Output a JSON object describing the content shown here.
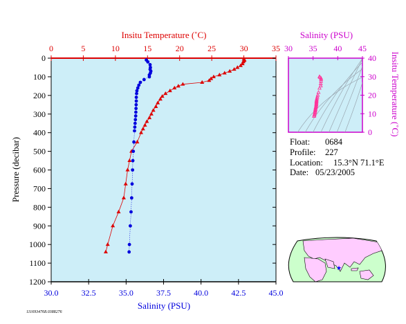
{
  "colors": {
    "background": "#ffffff",
    "plot_fill": "#cdeef8",
    "temperature": "#dd0000",
    "salinity": "#0000dd",
    "ts_axis": "#cc00cc",
    "ts_points": "#ff3399",
    "axis_black": "#000000",
    "isopycnal": "#9aa6b0",
    "land": "#ffccff",
    "ocean": "#ccffcc",
    "marker": "#0000ff"
  },
  "chart_data": [
    {
      "type": "line",
      "title": "",
      "ylabel": "Pressure (decibar)",
      "ylim": [
        1200,
        0
      ],
      "y_ticks": [
        "0",
        "100",
        "200",
        "300",
        "400",
        "500",
        "600",
        "700",
        "800",
        "900",
        "1000",
        "1100",
        "1200"
      ],
      "top_axis": {
        "label": "Insitu Temperature (˚C)",
        "range": [
          0,
          35
        ],
        "ticks": [
          "0",
          "5",
          "10",
          "15",
          "20",
          "25",
          "30",
          "35"
        ]
      },
      "bottom_axis": {
        "label": "Salinity (PSU)",
        "range": [
          30,
          45
        ],
        "ticks": [
          "30.0",
          "32.5",
          "35.0",
          "37.5",
          "40.0",
          "42.5",
          "45.0"
        ]
      },
      "grid": false,
      "legend": "none",
      "series": [
        {
          "name": "",
          "quantity": "temperature",
          "marker": "triangle",
          "points": [
            {
              "p": 5,
              "v": 30.0
            },
            {
              "p": 10,
              "v": 30.1
            },
            {
              "p": 15,
              "v": 30.0
            },
            {
              "p": 20,
              "v": 29.9
            },
            {
              "p": 30,
              "v": 29.8
            },
            {
              "p": 40,
              "v": 29.5
            },
            {
              "p": 50,
              "v": 29.0
            },
            {
              "p": 60,
              "v": 28.5
            },
            {
              "p": 70,
              "v": 27.8
            },
            {
              "p": 80,
              "v": 27.0
            },
            {
              "p": 90,
              "v": 26.2
            },
            {
              "p": 100,
              "v": 25.3
            },
            {
              "p": 110,
              "v": 24.9
            },
            {
              "p": 120,
              "v": 24.6
            },
            {
              "p": 130,
              "v": 23.5
            },
            {
              "p": 140,
              "v": 20.5
            },
            {
              "p": 150,
              "v": 19.8
            },
            {
              "p": 160,
              "v": 19.2
            },
            {
              "p": 175,
              "v": 18.5
            },
            {
              "p": 190,
              "v": 17.8
            },
            {
              "p": 205,
              "v": 17.3
            },
            {
              "p": 220,
              "v": 17.0
            },
            {
              "p": 240,
              "v": 16.6
            },
            {
              "p": 260,
              "v": 16.3
            },
            {
              "p": 280,
              "v": 15.9
            },
            {
              "p": 300,
              "v": 15.6
            },
            {
              "p": 320,
              "v": 15.3
            },
            {
              "p": 340,
              "v": 14.9
            },
            {
              "p": 360,
              "v": 14.6
            },
            {
              "p": 380,
              "v": 14.3
            },
            {
              "p": 400,
              "v": 14.0
            },
            {
              "p": 450,
              "v": 13.4
            },
            {
              "p": 500,
              "v": 12.5
            },
            {
              "p": 550,
              "v": 12.2
            },
            {
              "p": 600,
              "v": 11.9
            },
            {
              "p": 675,
              "v": 11.6
            },
            {
              "p": 750,
              "v": 11.3
            },
            {
              "p": 825,
              "v": 10.5
            },
            {
              "p": 900,
              "v": 9.6
            },
            {
              "p": 1000,
              "v": 8.8
            },
            {
              "p": 1040,
              "v": 8.5
            }
          ]
        },
        {
          "name": "",
          "quantity": "salinity",
          "marker": "circle",
          "points": [
            {
              "p": 10,
              "v": 36.35
            },
            {
              "p": 20,
              "v": 36.45
            },
            {
              "p": 35,
              "v": 36.6
            },
            {
              "p": 50,
              "v": 36.62
            },
            {
              "p": 60,
              "v": 36.6
            },
            {
              "p": 70,
              "v": 36.65
            },
            {
              "p": 80,
              "v": 36.62
            },
            {
              "p": 90,
              "v": 36.55
            },
            {
              "p": 100,
              "v": 36.55
            },
            {
              "p": 115,
              "v": 36.2
            },
            {
              "p": 130,
              "v": 35.95
            },
            {
              "p": 145,
              "v": 35.85
            },
            {
              "p": 160,
              "v": 35.78
            },
            {
              "p": 175,
              "v": 35.72
            },
            {
              "p": 190,
              "v": 35.7
            },
            {
              "p": 210,
              "v": 35.68
            },
            {
              "p": 230,
              "v": 35.68
            },
            {
              "p": 250,
              "v": 35.67
            },
            {
              "p": 270,
              "v": 35.66
            },
            {
              "p": 290,
              "v": 35.65
            },
            {
              "p": 310,
              "v": 35.64
            },
            {
              "p": 330,
              "v": 35.62
            },
            {
              "p": 350,
              "v": 35.6
            },
            {
              "p": 370,
              "v": 35.58
            },
            {
              "p": 390,
              "v": 35.56
            },
            {
              "p": 450,
              "v": 35.52
            },
            {
              "p": 500,
              "v": 35.48
            },
            {
              "p": 550,
              "v": 35.45
            },
            {
              "p": 600,
              "v": 35.43
            },
            {
              "p": 675,
              "v": 35.4
            },
            {
              "p": 750,
              "v": 35.37
            },
            {
              "p": 825,
              "v": 35.33
            },
            {
              "p": 900,
              "v": 35.28
            },
            {
              "p": 1000,
              "v": 35.22
            },
            {
              "p": 1040,
              "v": 35.2
            }
          ]
        }
      ]
    },
    {
      "type": "scatter",
      "title": "",
      "x_axis": {
        "label": "Salinity (PSU)",
        "range": [
          30,
          45
        ],
        "ticks": [
          "30",
          "35",
          "40",
          "45"
        ]
      },
      "y_axis": {
        "label": "Insitu Temperature (˚C)",
        "range": [
          0,
          40
        ],
        "ticks": [
          "0",
          "10",
          "20",
          "30",
          "40"
        ]
      },
      "isopycnals": true,
      "grid": false,
      "legend": "none",
      "points": [
        {
          "x": 36.3,
          "y": 30.0
        },
        {
          "x": 36.4,
          "y": 29.7
        },
        {
          "x": 36.6,
          "y": 29.2
        },
        {
          "x": 36.62,
          "y": 28.5
        },
        {
          "x": 36.6,
          "y": 27.5
        },
        {
          "x": 36.55,
          "y": 26.2
        },
        {
          "x": 36.55,
          "y": 25.0
        },
        {
          "x": 36.3,
          "y": 23.8
        },
        {
          "x": 36.1,
          "y": 21.5
        },
        {
          "x": 35.95,
          "y": 20.0
        },
        {
          "x": 35.85,
          "y": 19.0
        },
        {
          "x": 35.78,
          "y": 18.2
        },
        {
          "x": 35.72,
          "y": 17.5
        },
        {
          "x": 35.7,
          "y": 17.0
        },
        {
          "x": 35.68,
          "y": 16.5
        },
        {
          "x": 35.67,
          "y": 16.0
        },
        {
          "x": 35.66,
          "y": 15.5
        },
        {
          "x": 35.65,
          "y": 15.0
        },
        {
          "x": 35.62,
          "y": 14.5
        },
        {
          "x": 35.6,
          "y": 14.0
        },
        {
          "x": 35.55,
          "y": 13.5
        },
        {
          "x": 35.5,
          "y": 13.0
        },
        {
          "x": 35.48,
          "y": 12.5
        },
        {
          "x": 35.45,
          "y": 12.0
        },
        {
          "x": 35.42,
          "y": 11.5
        },
        {
          "x": 35.4,
          "y": 11.0
        },
        {
          "x": 35.35,
          "y": 10.5
        },
        {
          "x": 35.3,
          "y": 9.8
        },
        {
          "x": 35.25,
          "y": 9.2
        },
        {
          "x": 35.2,
          "y": 8.6
        }
      ]
    }
  ],
  "info": {
    "float_label": "Float:",
    "float_value": "0684",
    "profile_label": "Profile:",
    "profile_value": "227",
    "location_label": "Location:",
    "location_value": "15.3°N  71.1°E",
    "date_label": "Date:",
    "date_value": "05/23/2005"
  },
  "map": {
    "float_location": {
      "lat": 15.3,
      "lon": 71.1
    },
    "marker_icon": "star-icon"
  },
  "footer_code": "1116934768.0388276"
}
